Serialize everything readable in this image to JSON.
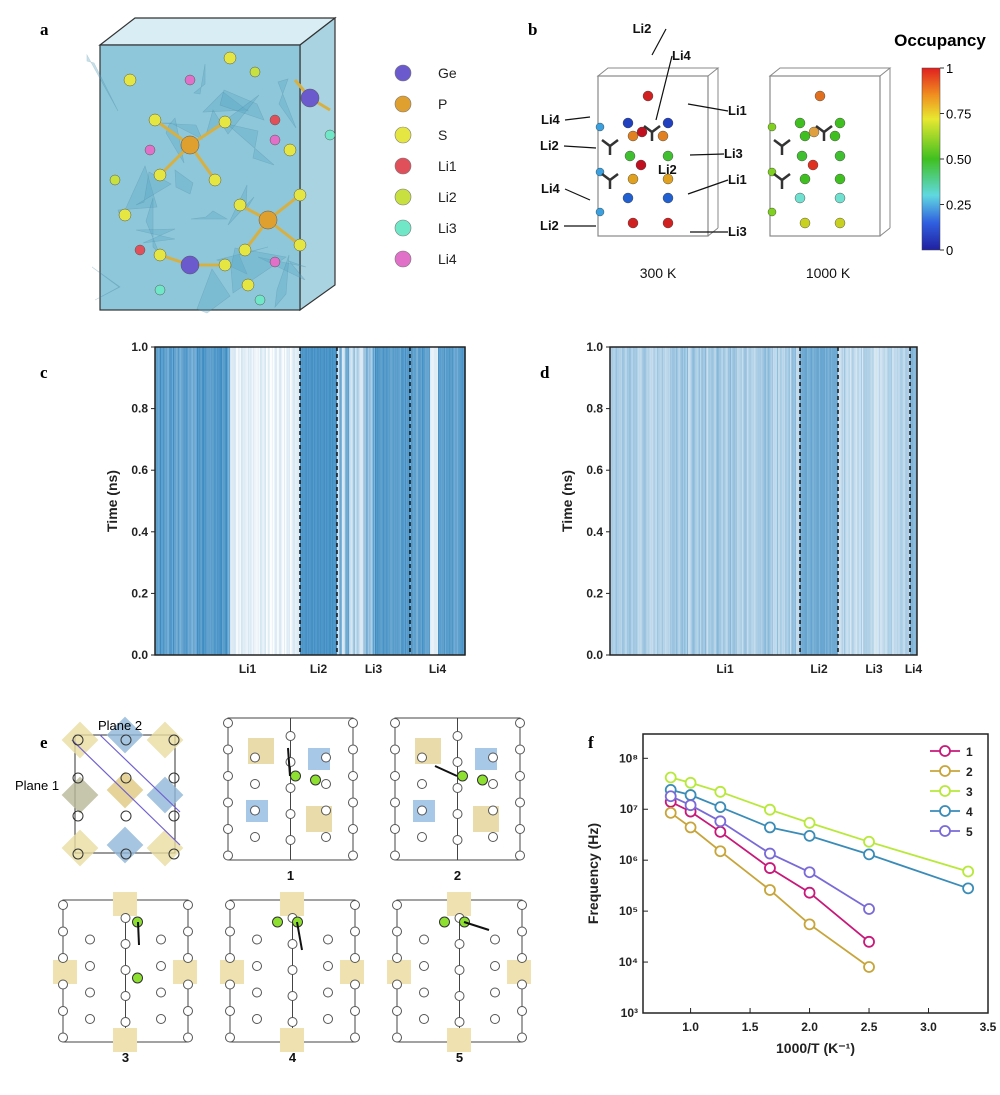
{
  "panels": {
    "a": "a",
    "b": "b",
    "c": "c",
    "d": "d",
    "e": "e",
    "f": "f"
  },
  "panel_a": {
    "legend": [
      {
        "label": "Ge",
        "color": "#6a5acd"
      },
      {
        "label": "P",
        "color": "#e0a030"
      },
      {
        "label": "S",
        "color": "#e6e642"
      },
      {
        "label": "Li1",
        "color": "#e0505a"
      },
      {
        "label": "Li2",
        "color": "#c8e040"
      },
      {
        "label": "Li3",
        "color": "#70e8c8"
      },
      {
        "label": "Li4",
        "color": "#e070c8"
      }
    ]
  },
  "panel_b": {
    "colorbar_title": "Occupancy",
    "colorbar_ticks": [
      "1",
      "0.75",
      "0.50",
      "0.25",
      "0"
    ],
    "temps": [
      "300 K",
      "1000 K"
    ],
    "labels": {
      "li2_top": "Li2",
      "li4_top": "Li4",
      "li1_a": "Li1",
      "li4_a": "Li4",
      "li2_a": "Li2",
      "li3_a": "Li3",
      "li2_mid": "Li2",
      "li4_b": "Li4",
      "li1_b": "Li1",
      "li2_b": "Li2",
      "li3_b": "Li3"
    }
  },
  "panel_c": {
    "ylabel": "Time (ns)",
    "yticks": [
      "0.0",
      "0.2",
      "0.4",
      "0.6",
      "0.8",
      "1.0"
    ],
    "xcats": [
      "Li1",
      "Li2",
      "Li3",
      "Li4"
    ]
  },
  "panel_d": {
    "ylabel": "Time (ns)",
    "yticks": [
      "0.0",
      "0.2",
      "0.4",
      "0.6",
      "0.8",
      "1.0"
    ],
    "xcats": [
      "Li1",
      "Li2",
      "Li3",
      "Li4"
    ]
  },
  "panel_e": {
    "plane1": "Plane 1",
    "plane2": "Plane 2",
    "paths": [
      "1",
      "2",
      "3",
      "4",
      "5"
    ]
  },
  "chart_data": {
    "type": "line",
    "xlabel": "1000/T (K⁻¹)",
    "ylabel": "Frequency (Hz)",
    "xlim": [
      0.6,
      3.5
    ],
    "ylim": [
      1000,
      300000000
    ],
    "yscale": "log",
    "xticks": [
      "1.0",
      "1.5",
      "2.0",
      "2.5",
      "3.0",
      "3.5"
    ],
    "yticks": [
      "10³",
      "10⁴",
      "10⁵",
      "10⁶",
      "10⁷",
      "10⁸"
    ],
    "legend_position": "top-right",
    "series": [
      {
        "name": "1",
        "color": "#c8187a",
        "x": [
          0.833,
          1.0,
          1.25,
          1.667,
          2.0,
          2.5
        ],
        "y": [
          14000000,
          9000000,
          3600000,
          700000,
          230000,
          25000
        ]
      },
      {
        "name": "2",
        "color": "#c8a53a",
        "x": [
          0.833,
          1.0,
          1.25,
          1.667,
          2.0,
          2.5
        ],
        "y": [
          8500000,
          4400000,
          1500000,
          260000,
          55000,
          8000
        ]
      },
      {
        "name": "3",
        "color": "#b8e83a",
        "x": [
          0.833,
          1.0,
          1.25,
          1.667,
          2.0,
          2.5,
          3.333
        ],
        "y": [
          42000000,
          33000000,
          22000000,
          9800000,
          5400000,
          2300000,
          600000
        ]
      },
      {
        "name": "4",
        "color": "#3a8cb8",
        "x": [
          0.833,
          1.0,
          1.25,
          1.667,
          2.0,
          2.5,
          3.333
        ],
        "y": [
          24000000,
          19000000,
          11000000,
          4400000,
          3000000,
          1300000,
          280000
        ]
      },
      {
        "name": "5",
        "color": "#7a6ad8",
        "x": [
          0.833,
          1.0,
          1.25,
          1.667,
          2.0,
          2.5
        ],
        "y": [
          18000000,
          12000000,
          5800000,
          1350000,
          580000,
          110000
        ]
      }
    ]
  }
}
